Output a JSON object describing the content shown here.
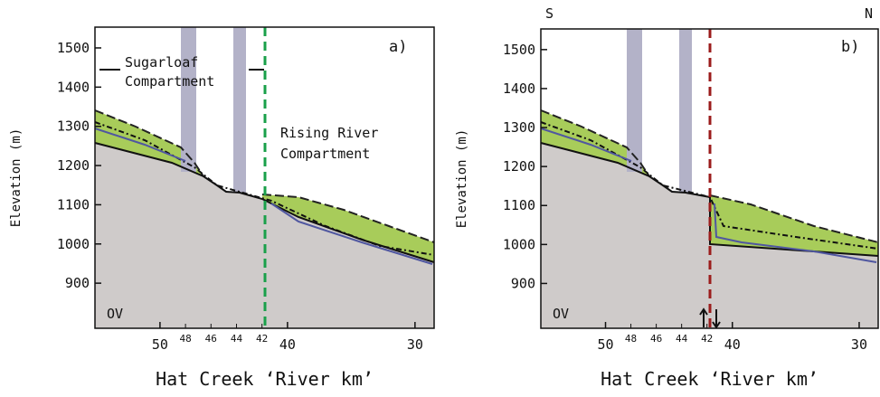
{
  "panels": [
    {
      "label": "a)",
      "ylabel": "Elevation (m)",
      "xlabel": "Hat Creek ‘River km’",
      "ylim": [
        785,
        1553
      ],
      "yticks": [
        900,
        1000,
        1100,
        1200,
        1300,
        1400,
        1500
      ],
      "xlim": [
        55.1,
        28.5
      ],
      "xticks": [
        50,
        40,
        30
      ],
      "xticks_minor": [
        48,
        46,
        44,
        42
      ],
      "notes": [
        "Sugarloaf",
        "Compartment",
        "Rising River",
        "Compartment",
        "OV"
      ]
    },
    {
      "label": "b)",
      "ylabel": "Elevation (m)",
      "xlabel": "Hat Creek ‘River km’",
      "ylim": [
        785,
        1553
      ],
      "yticks": [
        900,
        1000,
        1100,
        1200,
        1300,
        1400,
        1500
      ],
      "xlim": [
        55.1,
        28.5
      ],
      "xticks": [
        50,
        40,
        30
      ],
      "xticks_minor": [
        48,
        46,
        44,
        42
      ],
      "notes": [
        "OV",
        "S",
        "N"
      ]
    }
  ]
}
